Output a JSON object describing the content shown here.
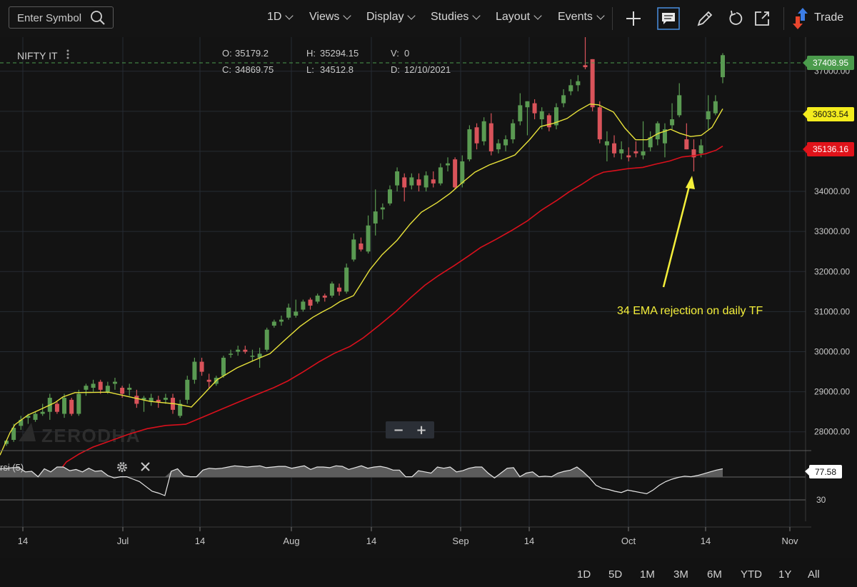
{
  "toolbar": {
    "search_placeholder": "Enter Symbol",
    "menus": [
      "1D",
      "Views",
      "Display",
      "Studies",
      "Layout",
      "Events"
    ],
    "trade_label": "Trade",
    "icons": [
      "search-icon",
      "crosshair-icon",
      "comment-icon",
      "pencil-icon",
      "undo-icon",
      "popout-icon",
      "trade-arrows-icon"
    ]
  },
  "ohlc": {
    "symbol": "NIFTY IT",
    "o_label": "O:",
    "o": "35179.2",
    "h_label": "H:",
    "h": "35294.15",
    "v_label": "V:",
    "v": "0",
    "c_label": "C:",
    "c": "34869.75",
    "l_label": "L:",
    "l": "34512.8",
    "d_label": "D:",
    "d": "12/10/2021"
  },
  "watermark": "ZERODHA",
  "annotation": "34 EMA rejection on daily TF",
  "rsi_label": "rsi (5)",
  "zoom_minus": "−",
  "zoom_plus": "+",
  "ranges": [
    "1D",
    "5D",
    "1M",
    "3M",
    "6M",
    "YTD",
    "1Y",
    "All"
  ],
  "colors": {
    "up": "#5a9a52",
    "down": "#d9535a",
    "ema_fast": "#e8e23a",
    "ema_slow": "#d9101c",
    "last_price": "#4b9b4c",
    "annotation": "#f4ef3a"
  },
  "chart_data": {
    "type": "candlestick",
    "title": "NIFTY IT",
    "ylim": [
      27550,
      37850
    ],
    "y_ticks": [
      "28000.00",
      "29000.00",
      "30000.00",
      "31000.00",
      "32000.00",
      "33000.00",
      "34000.00",
      "35000.00",
      "36000.00",
      "37000.00"
    ],
    "x_tick_labels": [
      "14",
      "Jul",
      "14",
      "Aug",
      "14",
      "Sep",
      "14",
      "Oct",
      "14",
      "Nov"
    ],
    "last_price": "37408.95",
    "ema_fast_value": "36033.54",
    "ema_slow_value": "35136.16",
    "candles": [
      [
        27700,
        27800,
        27650,
        27780
      ],
      [
        27800,
        28200,
        27750,
        28100
      ],
      [
        28150,
        28400,
        28050,
        28300
      ],
      [
        28350,
        28450,
        28200,
        28400
      ],
      [
        28300,
        28500,
        28250,
        28450
      ],
      [
        28450,
        28700,
        28400,
        28500
      ],
      [
        28500,
        28950,
        28300,
        28850
      ],
      [
        28700,
        28750,
        28450,
        28500
      ],
      [
        28450,
        28950,
        28350,
        28850
      ],
      [
        28800,
        28850,
        28400,
        28450
      ],
      [
        28450,
        29050,
        28400,
        28950
      ],
      [
        29050,
        29200,
        28900,
        29150
      ],
      [
        29100,
        29300,
        29000,
        29200
      ],
      [
        29250,
        29300,
        28950,
        29050
      ],
      [
        29000,
        29250,
        28950,
        29150
      ],
      [
        29200,
        29350,
        29050,
        29250
      ],
      [
        29100,
        29150,
        28850,
        28950
      ],
      [
        29050,
        29200,
        28900,
        29100
      ],
      [
        28900,
        29050,
        28600,
        28700
      ],
      [
        28800,
        28900,
        28500,
        28850
      ],
      [
        28750,
        28950,
        28650,
        28850
      ],
      [
        28800,
        28900,
        28600,
        28750
      ],
      [
        28800,
        28950,
        28700,
        28850
      ],
      [
        28850,
        28950,
        28450,
        28550
      ],
      [
        28400,
        28800,
        28350,
        28700
      ],
      [
        28800,
        29400,
        28700,
        29300
      ],
      [
        29300,
        29850,
        29200,
        29750
      ],
      [
        29750,
        29850,
        29400,
        29500
      ],
      [
        29300,
        29450,
        29100,
        29250
      ],
      [
        29200,
        29400,
        29150,
        29350
      ],
      [
        29400,
        29900,
        29350,
        29850
      ],
      [
        29950,
        30050,
        29850,
        29950
      ],
      [
        30000,
        30150,
        29900,
        30050
      ],
      [
        30050,
        30150,
        29950,
        30000
      ],
      [
        29900,
        30050,
        29750,
        29900
      ],
      [
        29850,
        30100,
        29600,
        29950
      ],
      [
        30050,
        30600,
        30000,
        30550
      ],
      [
        30650,
        30800,
        30600,
        30750
      ],
      [
        30750,
        30900,
        30650,
        30800
      ],
      [
        30850,
        31200,
        30800,
        31100
      ],
      [
        30900,
        31300,
        30850,
        31000
      ],
      [
        31050,
        31300,
        31000,
        31250
      ],
      [
        31300,
        31350,
        31050,
        31150
      ],
      [
        31250,
        31450,
        31200,
        31400
      ],
      [
        31400,
        31450,
        31250,
        31350
      ],
      [
        31400,
        31750,
        31350,
        31700
      ],
      [
        31600,
        31700,
        31400,
        31500
      ],
      [
        31500,
        32200,
        31450,
        32100
      ],
      [
        32300,
        32950,
        32250,
        32800
      ],
      [
        32700,
        32850,
        32500,
        32550
      ],
      [
        32500,
        33400,
        32450,
        33150
      ],
      [
        33200,
        34050,
        32900,
        33500
      ],
      [
        33550,
        33700,
        33300,
        33600
      ],
      [
        33700,
        34150,
        33650,
        34050
      ],
      [
        34150,
        34600,
        34000,
        34500
      ],
      [
        34350,
        34450,
        33750,
        34100
      ],
      [
        34150,
        34450,
        34050,
        34350
      ],
      [
        34300,
        34450,
        34000,
        34150
      ],
      [
        34100,
        34500,
        34000,
        34400
      ],
      [
        34300,
        34500,
        34100,
        34200
      ],
      [
        34200,
        34700,
        34150,
        34600
      ],
      [
        34650,
        34850,
        34500,
        34700
      ],
      [
        34800,
        34850,
        34050,
        34100
      ],
      [
        34200,
        34900,
        34100,
        34750
      ],
      [
        34800,
        35650,
        34750,
        35550
      ],
      [
        35600,
        35700,
        35050,
        35200
      ],
      [
        35250,
        35850,
        35150,
        35750
      ],
      [
        35700,
        35950,
        34900,
        35000
      ],
      [
        35050,
        35300,
        34950,
        35200
      ],
      [
        35150,
        35400,
        35000,
        35300
      ],
      [
        35300,
        35800,
        35200,
        35700
      ],
      [
        35750,
        36450,
        35650,
        36150
      ],
      [
        36100,
        36250,
        35400,
        36250
      ],
      [
        36200,
        36300,
        35800,
        35950
      ],
      [
        35800,
        36100,
        35550,
        36000
      ],
      [
        35900,
        35950,
        35500,
        35600
      ],
      [
        35650,
        36200,
        35550,
        36100
      ],
      [
        36200,
        36550,
        36100,
        36400
      ],
      [
        36500,
        36800,
        36400,
        36650
      ],
      [
        36650,
        36900,
        36500,
        36750
      ],
      [
        37150,
        37850,
        37050,
        37100
      ],
      [
        37300,
        37300,
        36000,
        36100
      ],
      [
        36100,
        36250,
        35200,
        35300
      ],
      [
        35150,
        35500,
        34750,
        35250
      ],
      [
        35200,
        35400,
        34850,
        34950
      ],
      [
        34950,
        35250,
        34800,
        35050
      ],
      [
        34900,
        35100,
        34750,
        34850
      ],
      [
        35000,
        35250,
        34850,
        34950
      ],
      [
        34900,
        35750,
        34800,
        35000
      ],
      [
        35100,
        35500,
        35000,
        35350
      ],
      [
        35300,
        35750,
        35150,
        35700
      ],
      [
        35200,
        35700,
        34850,
        35550
      ],
      [
        35650,
        36200,
        35550,
        35800
      ],
      [
        35900,
        36700,
        35850,
        36400
      ],
      [
        35300,
        35700,
        35050,
        35050
      ],
      [
        35050,
        35300,
        34500,
        34850
      ],
      [
        34950,
        35300,
        34850,
        35150
      ],
      [
        35800,
        36400,
        35550,
        36000
      ],
      [
        35950,
        36400,
        35900,
        36250
      ],
      [
        36850,
        37450,
        36700,
        37400
      ]
    ],
    "ema_fast_points": [
      [
        0,
        27420
      ],
      [
        14,
        27980
      ],
      [
        21,
        28180
      ],
      [
        39,
        28420
      ],
      [
        53,
        28530
      ],
      [
        77,
        28730
      ],
      [
        88,
        28870
      ],
      [
        105,
        28980
      ],
      [
        152,
        28990
      ],
      [
        180,
        28880
      ],
      [
        210,
        28760
      ],
      [
        245,
        28700
      ],
      [
        268,
        28620
      ],
      [
        282,
        28880
      ],
      [
        304,
        29300
      ],
      [
        332,
        29600
      ],
      [
        355,
        29780
      ],
      [
        378,
        29950
      ],
      [
        400,
        30310
      ],
      [
        420,
        30630
      ],
      [
        438,
        30860
      ],
      [
        452,
        31000
      ],
      [
        464,
        31110
      ],
      [
        476,
        31250
      ],
      [
        495,
        31400
      ],
      [
        505,
        31680
      ],
      [
        518,
        32050
      ],
      [
        535,
        32420
      ],
      [
        556,
        32780
      ],
      [
        574,
        33180
      ],
      [
        590,
        33480
      ],
      [
        612,
        33720
      ],
      [
        630,
        33950
      ],
      [
        648,
        34230
      ],
      [
        665,
        34480
      ],
      [
        685,
        34660
      ],
      [
        703,
        34780
      ],
      [
        721,
        34910
      ],
      [
        742,
        35300
      ],
      [
        757,
        35620
      ],
      [
        775,
        35700
      ],
      [
        794,
        35820
      ],
      [
        810,
        36020
      ],
      [
        826,
        36180
      ],
      [
        838,
        36160
      ],
      [
        859,
        35980
      ],
      [
        875,
        35580
      ],
      [
        890,
        35290
      ],
      [
        906,
        35290
      ],
      [
        922,
        35450
      ],
      [
        939,
        35550
      ],
      [
        952,
        35450
      ],
      [
        967,
        35370
      ],
      [
        982,
        35400
      ],
      [
        997,
        35600
      ],
      [
        1012,
        36060
      ]
    ],
    "ema_slow_points": [
      [
        82,
        27000
      ],
      [
        93,
        27250
      ],
      [
        111,
        27450
      ],
      [
        130,
        27620
      ],
      [
        152,
        27760
      ],
      [
        180,
        27940
      ],
      [
        206,
        28080
      ],
      [
        232,
        28160
      ],
      [
        260,
        28190
      ],
      [
        280,
        28340
      ],
      [
        304,
        28520
      ],
      [
        331,
        28720
      ],
      [
        358,
        28920
      ],
      [
        383,
        29100
      ],
      [
        403,
        29270
      ],
      [
        424,
        29490
      ],
      [
        447,
        29750
      ],
      [
        468,
        29960
      ],
      [
        490,
        30130
      ],
      [
        509,
        30350
      ],
      [
        531,
        30660
      ],
      [
        554,
        31000
      ],
      [
        575,
        31350
      ],
      [
        595,
        31660
      ],
      [
        614,
        31900
      ],
      [
        636,
        32150
      ],
      [
        656,
        32390
      ],
      [
        673,
        32600
      ],
      [
        694,
        32800
      ],
      [
        716,
        33020
      ],
      [
        738,
        33260
      ],
      [
        758,
        33530
      ],
      [
        780,
        33780
      ],
      [
        797,
        33990
      ],
      [
        814,
        34170
      ],
      [
        832,
        34380
      ],
      [
        845,
        34480
      ],
      [
        861,
        34520
      ],
      [
        880,
        34570
      ],
      [
        900,
        34600
      ],
      [
        918,
        34680
      ],
      [
        938,
        34760
      ],
      [
        955,
        34860
      ],
      [
        971,
        34890
      ],
      [
        988,
        34940
      ],
      [
        1003,
        35030
      ],
      [
        1012,
        35130
      ]
    ],
    "rsi": {
      "label": "rsi (5)",
      "last_value": "77.58",
      "y_tick": "30",
      "ylim": [
        0,
        100
      ],
      "values": [
        77,
        78,
        79,
        79,
        72,
        73,
        64,
        77,
        72,
        80,
        80,
        74,
        76,
        72,
        78,
        73,
        74,
        66,
        62,
        64,
        64,
        60,
        56,
        48,
        40,
        37,
        33,
        73,
        77,
        66,
        64,
        64,
        75,
        78,
        77,
        78,
        80,
        82,
        81,
        80,
        81,
        82,
        79,
        80,
        81,
        81,
        78,
        80,
        82,
        76,
        80,
        80,
        79,
        82,
        81,
        76,
        79,
        82,
        78,
        80,
        81,
        79,
        75,
        75,
        64,
        64,
        74,
        72,
        70,
        80,
        78,
        80,
        72,
        74,
        78,
        80,
        80,
        70,
        62,
        70,
        78,
        79,
        64,
        70,
        72,
        64,
        65,
        64,
        70,
        73,
        75,
        80,
        72,
        62,
        50,
        45,
        43,
        40,
        38,
        42,
        40,
        38,
        36,
        42,
        50,
        56,
        60,
        63,
        65,
        64,
        66,
        69,
        72,
        75,
        77
      ]
    }
  }
}
